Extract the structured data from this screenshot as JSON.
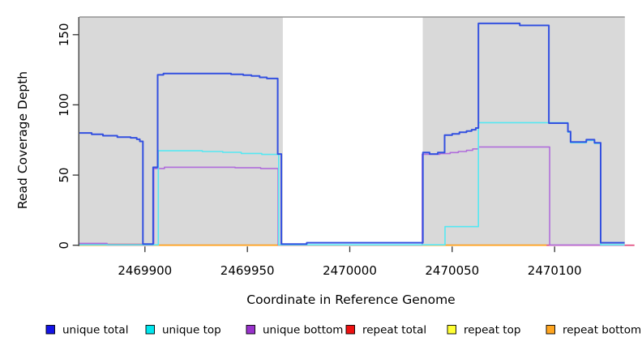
{
  "chart_data": {
    "type": "line",
    "subtype": "step",
    "title": "",
    "xlabel": "Coordinate in Reference Genome",
    "ylabel": "Read Coverage Depth",
    "xlim": [
      2469868,
      2470139
    ],
    "ylim": [
      0,
      163
    ],
    "xticks": [
      2469900,
      2469950,
      2470000,
      2470050,
      2470100
    ],
    "yticks": [
      0,
      50,
      100,
      150
    ],
    "grid": false,
    "legend_position": "bottom",
    "plot_bg": "#ffffff",
    "shaded_regions": {
      "color": "#d9d9d9",
      "edge_line_color": "#949494",
      "top_value": 162.5,
      "regions": [
        [
          2469868,
          2469967.3
        ],
        [
          2470035.6,
          2470134.3
        ]
      ]
    },
    "series": [
      {
        "name": "repeat total",
        "color": "#e0447a",
        "points": [
          [
            2469868,
            0.7
          ],
          [
            2469899,
            0.0
          ],
          [
            2470139,
            0.0
          ]
        ]
      },
      {
        "name": "repeat top",
        "color": "#ffee00",
        "points": [
          [
            2469868,
            0
          ],
          [
            2470096,
            0
          ]
        ]
      },
      {
        "name": "repeat bottom",
        "color": "#ff9f1a",
        "points": [
          [
            2469868,
            0
          ],
          [
            2470096,
            0
          ]
        ]
      },
      {
        "name": "unique bottom",
        "color": "#b06ddb",
        "points": [
          [
            2469868,
            1.3
          ],
          [
            2469881.5,
            0.2
          ],
          [
            2469904.3,
            54.6
          ],
          [
            2469909.5,
            55.6
          ],
          [
            2469944,
            55.2
          ],
          [
            2469956.5,
            54.6
          ],
          [
            2469965,
            0.2
          ],
          [
            2470035.4,
            64.8
          ],
          [
            2470044,
            65.3
          ],
          [
            2470049,
            66.0
          ],
          [
            2470053,
            66.8
          ],
          [
            2470057,
            67.6
          ],
          [
            2470060,
            68.6
          ],
          [
            2470062.8,
            70
          ],
          [
            2470097.6,
            0.2
          ],
          [
            2470134.2,
            0.2
          ]
        ]
      },
      {
        "name": "unique top",
        "color": "#55e8f2",
        "points": [
          [
            2469868,
            0.3
          ],
          [
            2469906.5,
            67.3
          ],
          [
            2469928,
            66.8
          ],
          [
            2469938,
            66.2
          ],
          [
            2469947,
            65.4
          ],
          [
            2469957,
            64.7
          ],
          [
            2469965.3,
            0.3
          ],
          [
            2470046.5,
            13.3
          ],
          [
            2470062.8,
            87.3
          ],
          [
            2470106.5,
            80.5
          ],
          [
            2470107.8,
            73.0
          ],
          [
            2470115.5,
            74.7
          ],
          [
            2470119.5,
            72.5
          ],
          [
            2470122.5,
            0.3
          ],
          [
            2470134.2,
            0.3
          ]
        ]
      },
      {
        "name": "unique total",
        "color": "#3350e0",
        "points": [
          [
            2469868,
            80
          ],
          [
            2469874,
            79
          ],
          [
            2469879.5,
            78
          ],
          [
            2469886.5,
            77
          ],
          [
            2469893,
            76.5
          ],
          [
            2469896,
            75.5
          ],
          [
            2469897.5,
            74
          ],
          [
            2469899,
            0.8
          ],
          [
            2469904,
            55.5
          ],
          [
            2469906.2,
            121.4
          ],
          [
            2469909,
            122.3
          ],
          [
            2469942,
            121.8
          ],
          [
            2469948,
            121.2
          ],
          [
            2469952,
            120.6
          ],
          [
            2469956,
            119.6
          ],
          [
            2469959.5,
            118.8
          ],
          [
            2469964.8,
            65
          ],
          [
            2469966.6,
            0.8
          ],
          [
            2469979,
            1.8
          ],
          [
            2470035.7,
            66
          ],
          [
            2470039,
            65
          ],
          [
            2470043,
            66
          ],
          [
            2470046.3,
            78.5
          ],
          [
            2470050,
            79.3
          ],
          [
            2470053.5,
            80.5
          ],
          [
            2470057,
            81.3
          ],
          [
            2470059.5,
            82.3
          ],
          [
            2470061.5,
            83.5
          ],
          [
            2470062.8,
            158
          ],
          [
            2470083,
            156.6
          ],
          [
            2470097.2,
            87
          ],
          [
            2470106.5,
            81
          ],
          [
            2470107.8,
            73.5
          ],
          [
            2470115.5,
            75.2
          ],
          [
            2470119.5,
            73
          ],
          [
            2470122.5,
            1.8
          ],
          [
            2470134.2,
            1.8
          ]
        ]
      }
    ],
    "legend": [
      {
        "label": "unique total",
        "swatch": "#1414e6"
      },
      {
        "label": "unique top",
        "swatch": "#00e6ee"
      },
      {
        "label": "unique bottom",
        "swatch": "#9932cc"
      },
      {
        "label": "repeat total",
        "swatch": "#ee1111"
      },
      {
        "label": "repeat top",
        "swatch": "#ffff33"
      },
      {
        "label": "repeat bottom",
        "swatch": "#ffa520"
      }
    ]
  }
}
